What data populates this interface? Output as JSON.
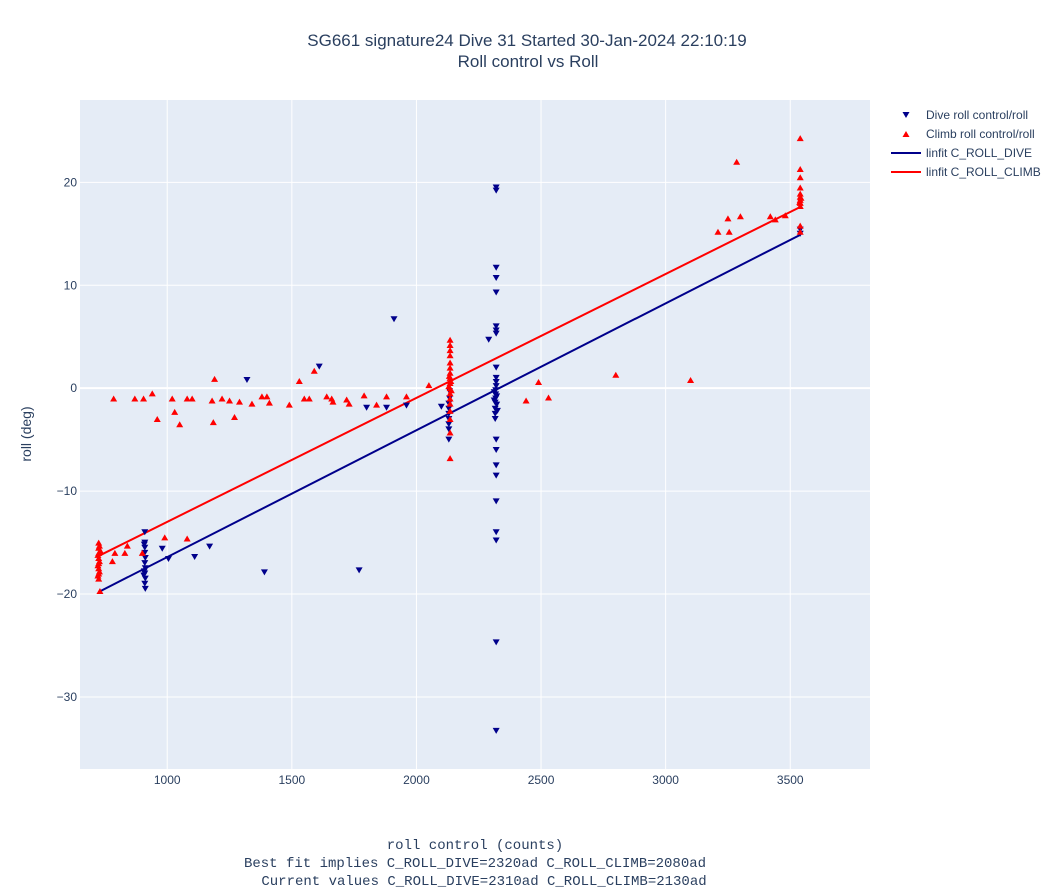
{
  "chart_data": {
    "type": "scatter",
    "title": "SG661 signature24 Dive 31 Started 30-Jan-2024 22:10:19",
    "subtitle": "Roll control vs Roll",
    "xlabel": "roll control (counts)",
    "xlabel_notes": [
      "Best fit implies C_ROLL_DIVE=2320ad C_ROLL_CLIMB=2080ad",
      "Current values C_ROLL_DIVE=2310ad C_ROLL_CLIMB=2130ad"
    ],
    "ylabel": "roll (deg)",
    "xlim": [
      650,
      3820
    ],
    "ylim": [
      -37,
      28
    ],
    "x_ticks": [
      1000,
      1500,
      2000,
      2500,
      3000,
      3500
    ],
    "y_ticks": [
      -30,
      -20,
      -10,
      0,
      10,
      20
    ],
    "grid": true,
    "legend_position": "top-right, outside plot",
    "colors": {
      "dive": "#00008b",
      "climb": "#ff0000",
      "plot_bg": "#e5ecf6",
      "grid": "#ffffff"
    },
    "series": [
      {
        "name": "Dive roll control/roll",
        "kind": "scatter",
        "marker": "triangle-down",
        "points": [
          [
            910,
            -14
          ],
          [
            910,
            -15
          ],
          [
            910,
            -15.5
          ],
          [
            910,
            -16
          ],
          [
            912,
            -16.5
          ],
          [
            910,
            -17
          ],
          [
            912,
            -17.5
          ],
          [
            910,
            -18
          ],
          [
            912,
            -18.5
          ],
          [
            910,
            -19
          ],
          [
            912,
            -19.5
          ],
          [
            908,
            -17.8
          ],
          [
            906,
            -18.2
          ],
          [
            908,
            -15.2
          ],
          [
            980,
            -15.6
          ],
          [
            1005,
            -16.6
          ],
          [
            1110,
            -16.4
          ],
          [
            1170,
            -15.4
          ],
          [
            1320,
            0.8
          ],
          [
            1390,
            -17.9
          ],
          [
            1610,
            2.1
          ],
          [
            1770,
            -17.7
          ],
          [
            1800,
            -1.9
          ],
          [
            1880,
            -1.9
          ],
          [
            1910,
            6.7
          ],
          [
            1960,
            -1.7
          ],
          [
            2100,
            -1.8
          ],
          [
            2290,
            4.7
          ],
          [
            2130,
            -1.5
          ],
          [
            2130,
            -2
          ],
          [
            2130,
            -2.5
          ],
          [
            2130,
            -3
          ],
          [
            2130,
            -3.5
          ],
          [
            2130,
            -4
          ],
          [
            2130,
            -5
          ],
          [
            2133,
            -0.3
          ],
          [
            2133,
            -1
          ],
          [
            2320,
            19.5
          ],
          [
            2320,
            19.2
          ],
          [
            2320,
            11.7
          ],
          [
            2320,
            10.7
          ],
          [
            2320,
            9.3
          ],
          [
            2320,
            6
          ],
          [
            2320,
            5.6
          ],
          [
            2320,
            5.3
          ],
          [
            2320,
            2
          ],
          [
            2320,
            1
          ],
          [
            2320,
            0.6
          ],
          [
            2320,
            0.2
          ],
          [
            2318,
            -0.2
          ],
          [
            2318,
            -0.6
          ],
          [
            2318,
            -1
          ],
          [
            2316,
            -1.4
          ],
          [
            2316,
            -2
          ],
          [
            2316,
            -2.5
          ],
          [
            2316,
            -3
          ],
          [
            2322,
            -0.8
          ],
          [
            2322,
            -1.6
          ],
          [
            2312,
            -0.4
          ],
          [
            2312,
            -1.2
          ],
          [
            2325,
            -2.2
          ],
          [
            2320,
            -5
          ],
          [
            2320,
            -6
          ],
          [
            2320,
            -7.5
          ],
          [
            2320,
            -8.5
          ],
          [
            2320,
            -11
          ],
          [
            2320,
            -14
          ],
          [
            2320,
            -14.8
          ],
          [
            2320,
            -24.7
          ],
          [
            2320,
            -33.3
          ],
          [
            3540,
            15
          ],
          [
            3540,
            15.4
          ]
        ]
      },
      {
        "name": "Climb roll control/roll",
        "kind": "scatter",
        "marker": "triangle-up",
        "points": [
          [
            725,
            -15
          ],
          [
            725,
            -15.5
          ],
          [
            725,
            -16
          ],
          [
            725,
            -16.5
          ],
          [
            725,
            -17
          ],
          [
            725,
            -17.5
          ],
          [
            725,
            -18
          ],
          [
            725,
            -18.5
          ],
          [
            728,
            -15.3
          ],
          [
            728,
            -16.8
          ],
          [
            728,
            -17.8
          ],
          [
            732,
            -15.8
          ],
          [
            722,
            -16.2
          ],
          [
            722,
            -17.2
          ],
          [
            722,
            -18.2
          ],
          [
            730,
            -19.7
          ],
          [
            780,
            -16.8
          ],
          [
            790,
            -16
          ],
          [
            830,
            -16
          ],
          [
            840,
            -15.3
          ],
          [
            900,
            -16
          ],
          [
            990,
            -14.5
          ],
          [
            1080,
            -14.6
          ],
          [
            785,
            -1
          ],
          [
            870,
            -1
          ],
          [
            905,
            -1
          ],
          [
            940,
            -0.5
          ],
          [
            960,
            -3
          ],
          [
            1020,
            -1
          ],
          [
            1030,
            -2.3
          ],
          [
            1050,
            -3.5
          ],
          [
            1080,
            -1
          ],
          [
            1100,
            -1
          ],
          [
            1180,
            -1.2
          ],
          [
            1185,
            -3.3
          ],
          [
            1190,
            0.9
          ],
          [
            1220,
            -1
          ],
          [
            1250,
            -1.2
          ],
          [
            1270,
            -2.8
          ],
          [
            1290,
            -1.3
          ],
          [
            1340,
            -1.5
          ],
          [
            1380,
            -0.8
          ],
          [
            1400,
            -0.8
          ],
          [
            1410,
            -1.4
          ],
          [
            1490,
            -1.6
          ],
          [
            1530,
            0.7
          ],
          [
            1550,
            -1
          ],
          [
            1570,
            -1
          ],
          [
            1590,
            1.7
          ],
          [
            1640,
            -0.8
          ],
          [
            1660,
            -1
          ],
          [
            1665,
            -1.3
          ],
          [
            1720,
            -1.1
          ],
          [
            1730,
            -1.5
          ],
          [
            1790,
            -0.7
          ],
          [
            1840,
            -1.6
          ],
          [
            1880,
            -0.8
          ],
          [
            1960,
            -0.8
          ],
          [
            2050,
            0.3
          ],
          [
            2135,
            4.7
          ],
          [
            2135,
            4.2
          ],
          [
            2135,
            3.7
          ],
          [
            2135,
            3.2
          ],
          [
            2135,
            2.5
          ],
          [
            2135,
            2
          ],
          [
            2135,
            1.5
          ],
          [
            2135,
            1
          ],
          [
            2135,
            0.5
          ],
          [
            2135,
            0
          ],
          [
            2135,
            -0.5
          ],
          [
            2135,
            -1
          ],
          [
            2135,
            -1.5
          ],
          [
            2135,
            -2.2
          ],
          [
            2135,
            -3
          ],
          [
            2135,
            -4.3
          ],
          [
            2135,
            -6.8
          ],
          [
            2132,
            1.2
          ],
          [
            2138,
            0.7
          ],
          [
            2130,
            0.2
          ],
          [
            2140,
            -0.2
          ],
          [
            2440,
            -1.2
          ],
          [
            2490,
            0.6
          ],
          [
            2530,
            -0.9
          ],
          [
            2800,
            1.3
          ],
          [
            3100,
            0.8
          ],
          [
            3210,
            15.2
          ],
          [
            3250,
            16.5
          ],
          [
            3255,
            15.2
          ],
          [
            3285,
            22
          ],
          [
            3300,
            16.7
          ],
          [
            3420,
            16.7
          ],
          [
            3440,
            16.4
          ],
          [
            3480,
            16.8
          ],
          [
            3540,
            24.3
          ],
          [
            3540,
            21.3
          ],
          [
            3540,
            20.5
          ],
          [
            3540,
            19.5
          ],
          [
            3540,
            18.9
          ],
          [
            3540,
            18.6
          ],
          [
            3540,
            18.3
          ],
          [
            3540,
            18
          ],
          [
            3540,
            17.7
          ],
          [
            3540,
            15.8
          ],
          [
            3540,
            15.2
          ],
          [
            3538,
            18.1
          ],
          [
            3543,
            18.5
          ]
        ]
      },
      {
        "name": "linfit C_ROLL_DIVE",
        "kind": "line",
        "points": [
          [
            725,
            -19.8
          ],
          [
            3540,
            14.9
          ]
        ]
      },
      {
        "name": "linfit C_ROLL_CLIMB",
        "kind": "line",
        "points": [
          [
            725,
            -16.3
          ],
          [
            3540,
            17.6
          ]
        ]
      }
    ]
  }
}
